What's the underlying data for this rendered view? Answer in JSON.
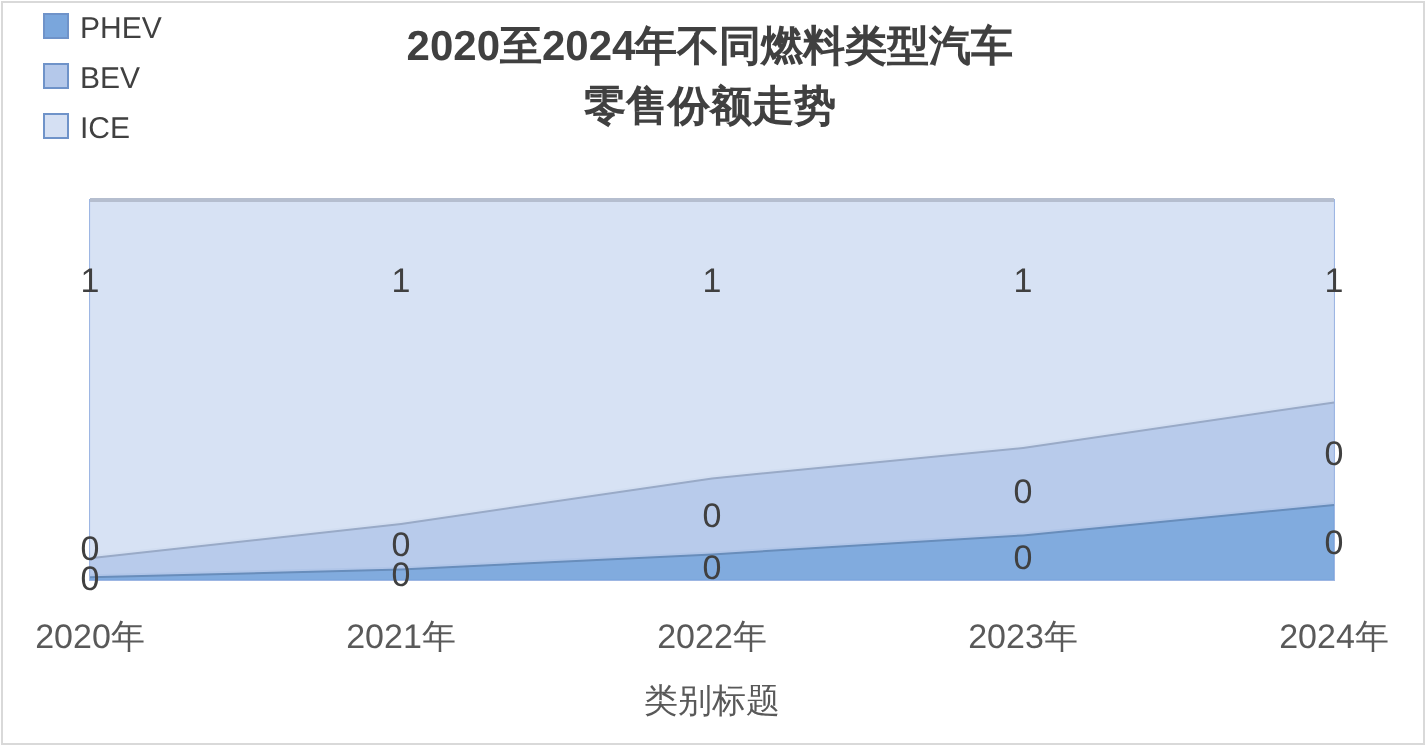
{
  "chart_data": {
    "type": "area",
    "stacked": true,
    "ylim": [
      0,
      1
    ],
    "tick_labels": "x",
    "title": "2020至2024年不同燃料类型汽车零售份额走势",
    "xlabel": "类别标题",
    "legend": "top left",
    "categories": [
      "2020年",
      "2021年",
      "2022年",
      "2023年",
      "2024年"
    ],
    "series": [
      {
        "name": "PHEV",
        "color": "#7aa6dc",
        "values": [
          0.01,
          0.03,
          0.07,
          0.12,
          0.2
        ],
        "value_labels": [
          "0",
          "0",
          "0",
          "0",
          "0"
        ]
      },
      {
        "name": "BEV",
        "color": "#b4c8ea",
        "values": [
          0.05,
          0.12,
          0.2,
          0.23,
          0.27
        ],
        "value_labels": [
          "0",
          "0",
          "0",
          "0",
          "0"
        ]
      },
      {
        "name": "ICE",
        "color": "#d5e0f3",
        "values": [
          0.94,
          0.85,
          0.73,
          0.65,
          0.53
        ],
        "value_labels": [
          "1",
          "1",
          "1",
          "1",
          "1"
        ]
      }
    ]
  }
}
